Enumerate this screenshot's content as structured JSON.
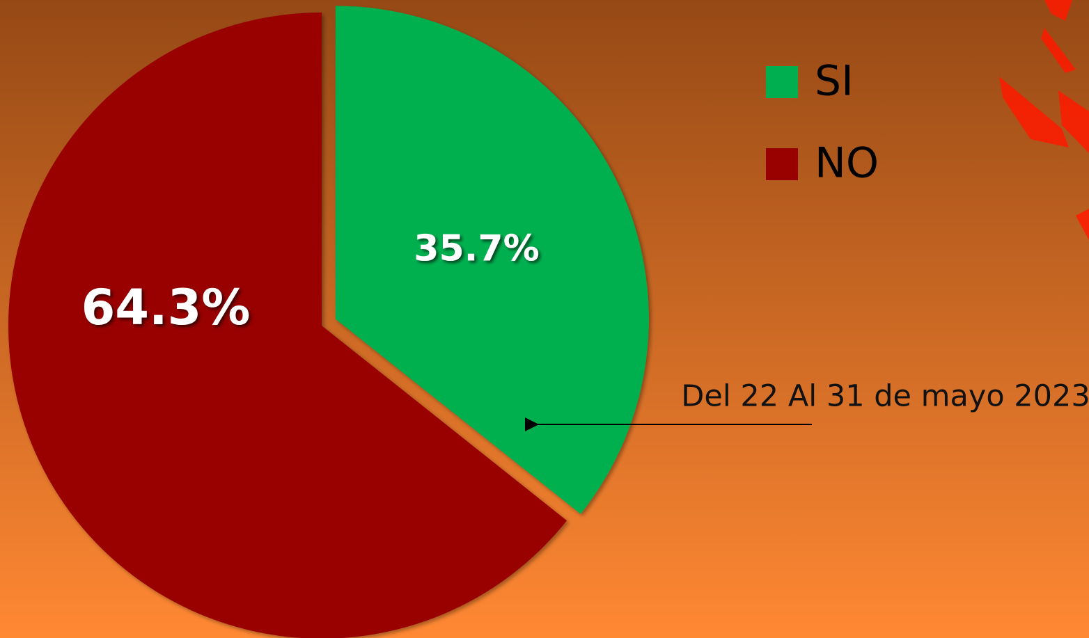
{
  "chart_data": {
    "type": "pie",
    "categories": [
      "SI",
      "NO"
    ],
    "values": [
      35.7,
      64.3
    ],
    "value_labels": [
      "35.7%",
      "64.3%"
    ],
    "colors": [
      "#00b050",
      "#990000"
    ],
    "annotation": "Del 22 Al 31 de mayo 2023",
    "legend": "right"
  }
}
